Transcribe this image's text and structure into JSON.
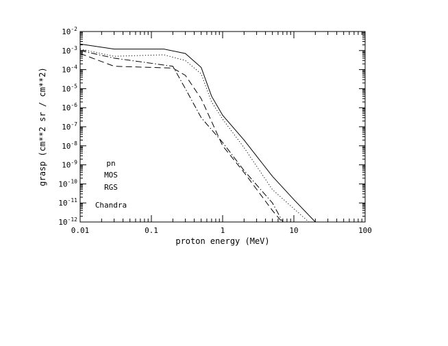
{
  "chart_data": {
    "type": "line",
    "xlabel": "proton energy (MeV)",
    "ylabel": "grasp (cm**2 sr / cm**2)",
    "xscale": "log",
    "yscale": "log",
    "xlim": [
      0.01,
      100
    ],
    "ylim": [
      1e-12,
      0.01
    ],
    "grid": false,
    "x_ticks": [
      {
        "value": 0.01,
        "label": "0.01"
      },
      {
        "value": 0.1,
        "label": "0.1"
      },
      {
        "value": 1,
        "label": "1"
      },
      {
        "value": 10,
        "label": "10"
      },
      {
        "value": 100,
        "label": "100"
      }
    ],
    "y_ticks": [
      {
        "value": 0.01,
        "base": "10",
        "exp": "-2"
      },
      {
        "value": 0.001,
        "base": "10",
        "exp": "-3"
      },
      {
        "value": 0.0001,
        "base": "10",
        "exp": "-4"
      },
      {
        "value": 1e-05,
        "base": "10",
        "exp": "-5"
      },
      {
        "value": 1e-06,
        "base": "10",
        "exp": "-6"
      },
      {
        "value": 1e-07,
        "base": "10",
        "exp": "-7"
      },
      {
        "value": 1e-08,
        "base": "10",
        "exp": "-8"
      },
      {
        "value": 1e-09,
        "base": "10",
        "exp": "-9"
      },
      {
        "value": 1e-10,
        "base": "10",
        "exp": "-10"
      },
      {
        "value": 1e-11,
        "base": "10",
        "exp": "-11"
      },
      {
        "value": 1e-12,
        "base": "10",
        "exp": "-12"
      }
    ],
    "legend": {
      "placement": "lower-left",
      "entries": [
        "pn",
        "MOS",
        "RGS",
        "Chandra"
      ]
    },
    "series": [
      {
        "style": "solid",
        "x": [
          0.01,
          0.03,
          0.15,
          0.3,
          0.5,
          0.7,
          1,
          2,
          5,
          10,
          20
        ],
        "y": [
          0.0022,
          0.0012,
          0.0012,
          0.0007,
          0.00013,
          4e-06,
          4e-07,
          2e-08,
          2.5e-10,
          1.5e-11,
          1e-12
        ]
      },
      {
        "style": "dotted",
        "x": [
          0.01,
          0.03,
          0.15,
          0.3,
          0.5,
          0.7,
          1,
          2,
          5,
          10,
          20
        ],
        "y": [
          0.0012,
          0.0005,
          0.0006,
          0.0003,
          6e-05,
          2e-06,
          2.5e-07,
          8e-09,
          5e-11,
          5e-12,
          5e-13
        ]
      },
      {
        "style": "dash-dot",
        "x": [
          0.01,
          0.03,
          0.2,
          0.3,
          0.5,
          1,
          2,
          5,
          7
        ],
        "y": [
          0.001,
          0.0004,
          0.00015,
          1e-05,
          3e-07,
          1.5e-08,
          5e-10,
          1e-11,
          1e-12
        ]
      },
      {
        "style": "dashed",
        "x": [
          0.01,
          0.03,
          0.2,
          0.3,
          0.5,
          1,
          2,
          5,
          8
        ],
        "y": [
          0.0007,
          0.00015,
          0.00012,
          5e-05,
          3e-06,
          1e-08,
          4e-10,
          4e-12,
          5e-13
        ]
      }
    ]
  }
}
